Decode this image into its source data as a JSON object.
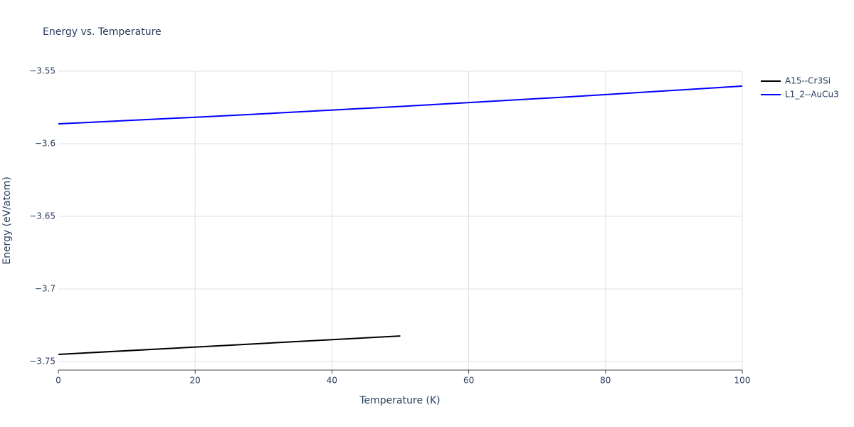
{
  "chart_data": {
    "type": "line",
    "title": "Energy vs. Temperature",
    "x_label": "Temperature (K)",
    "y_label": "Energy (eV/atom)",
    "series": [
      {
        "name": "A15--Cr3Si",
        "color": "#000000",
        "x": [
          0,
          25,
          50
        ],
        "values": [
          -3.7451,
          -3.7388,
          -3.7324
        ]
      },
      {
        "name": "L1_2--AuCu3",
        "color": "#0000ff",
        "x": [
          0,
          25,
          50,
          75,
          100
        ],
        "values": [
          -3.5863,
          -3.5806,
          -3.5743,
          -3.5676,
          -3.5603
        ]
      }
    ],
    "xlim": [
      0,
      100
    ],
    "xticks": [
      0,
      20,
      40,
      60,
      80,
      100
    ],
    "ylim": [
      -3.7559,
      -3.55
    ],
    "yticks": [
      {
        "value": -3.75,
        "label": "−3.75"
      },
      {
        "value": -3.7,
        "label": "−3.7"
      },
      {
        "value": -3.65,
        "label": "−3.65"
      },
      {
        "value": -3.6,
        "label": "−3.6"
      },
      {
        "value": -3.55,
        "label": "−3.55"
      }
    ],
    "grid": true,
    "legend": "top-right"
  }
}
